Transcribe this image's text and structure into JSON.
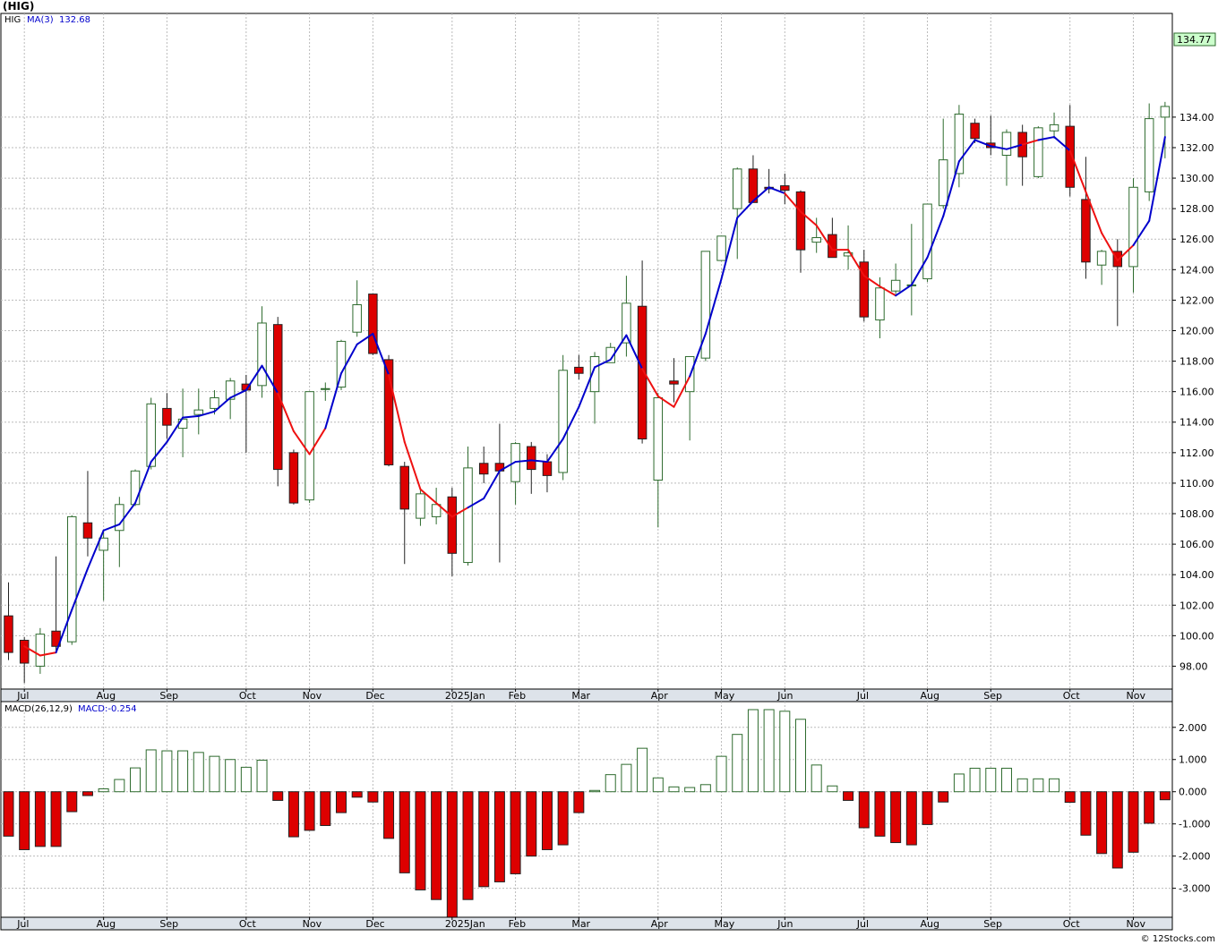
{
  "header": {
    "title": "(HIG)"
  },
  "legend": {
    "symbol": "HIG",
    "ma_label": "MA(3)",
    "ma_value": "132.68"
  },
  "macd_legend": {
    "label": "MACD(26,12,9)",
    "value_label": "MACD:-0.254"
  },
  "last_price": "134.77",
  "credit": "© 12Stocks.com",
  "colors": {
    "up": "#2e6b2e",
    "down": "#dd0000",
    "ma_up": "#0000cc",
    "ma_down": "#ee1111",
    "grid": "#bbbbbb"
  },
  "x_labels": [
    {
      "i": 1,
      "text": "Jul"
    },
    {
      "i": 6,
      "text": "Aug"
    },
    {
      "i": 10,
      "text": "Sep"
    },
    {
      "i": 15,
      "text": "Oct"
    },
    {
      "i": 19,
      "text": "Nov"
    },
    {
      "i": 23,
      "text": "Dec"
    },
    {
      "i": 28,
      "text": "2025Jan"
    },
    {
      "i": 32,
      "text": "Feb"
    },
    {
      "i": 36,
      "text": "Mar"
    },
    {
      "i": 41,
      "text": "Apr"
    },
    {
      "i": 45,
      "text": "May"
    },
    {
      "i": 49,
      "text": "Jun"
    },
    {
      "i": 54,
      "text": "Jul"
    },
    {
      "i": 58,
      "text": "Aug"
    },
    {
      "i": 62,
      "text": "Sep"
    },
    {
      "i": 67,
      "text": "Oct"
    },
    {
      "i": 71,
      "text": "Nov"
    }
  ],
  "chart_data": [
    {
      "type": "candlestick",
      "ylim": [
        96.5,
        140.8
      ],
      "yticks": [
        98,
        100,
        102,
        104,
        106,
        108,
        110,
        112,
        114,
        116,
        118,
        120,
        122,
        124,
        126,
        128,
        130,
        132,
        134
      ],
      "grid": true,
      "ohlc": [
        [
          101.3,
          103.5,
          98.4,
          98.9
        ],
        [
          99.7,
          99.9,
          96.9,
          98.2
        ],
        [
          98.0,
          100.5,
          97.5,
          100.1
        ],
        [
          100.3,
          105.2,
          99.0,
          99.3
        ],
        [
          99.6,
          107.9,
          99.4,
          107.8
        ],
        [
          107.4,
          110.8,
          105.2,
          106.4
        ],
        [
          105.6,
          106.8,
          102.3,
          106.4
        ],
        [
          106.9,
          109.1,
          104.5,
          108.6
        ],
        [
          108.6,
          110.9,
          108.5,
          110.8
        ],
        [
          111.1,
          115.6,
          110.9,
          115.2
        ],
        [
          114.9,
          115.9,
          112.9,
          113.8
        ],
        [
          113.6,
          116.2,
          111.7,
          114.2
        ],
        [
          114.5,
          116.2,
          113.2,
          114.8
        ],
        [
          114.9,
          116.1,
          114.5,
          115.6
        ],
        [
          115.5,
          116.9,
          114.2,
          116.7
        ],
        [
          116.5,
          117.1,
          112.0,
          116.1
        ],
        [
          116.4,
          121.6,
          115.6,
          120.5
        ],
        [
          120.4,
          120.9,
          109.8,
          110.9
        ],
        [
          112.0,
          112.2,
          108.6,
          108.7
        ],
        [
          108.9,
          116.0,
          108.7,
          116.0
        ],
        [
          116.2,
          116.6,
          115.4,
          116.2
        ],
        [
          116.3,
          119.4,
          116.1,
          119.3
        ],
        [
          119.9,
          123.3,
          119.6,
          121.7
        ],
        [
          122.4,
          122.4,
          118.4,
          118.5
        ],
        [
          118.1,
          118.4,
          111.1,
          111.2
        ],
        [
          111.1,
          111.4,
          104.7,
          108.3
        ],
        [
          107.7,
          109.6,
          107.2,
          109.3
        ],
        [
          107.8,
          109.7,
          107.3,
          108.6
        ],
        [
          109.1,
          109.7,
          103.9,
          105.4
        ],
        [
          104.8,
          112.4,
          104.6,
          111.0
        ],
        [
          111.3,
          112.4,
          110.0,
          110.6
        ],
        [
          111.3,
          113.9,
          104.8,
          110.8
        ],
        [
          110.1,
          112.7,
          108.6,
          112.6
        ],
        [
          112.4,
          112.7,
          109.3,
          110.9
        ],
        [
          111.4,
          111.9,
          109.4,
          110.5
        ],
        [
          110.7,
          118.4,
          110.2,
          117.4
        ],
        [
          117.6,
          118.4,
          116.8,
          117.2
        ],
        [
          116.0,
          118.6,
          113.9,
          118.3
        ],
        [
          117.9,
          119.2,
          117.9,
          118.9
        ],
        [
          119.2,
          123.6,
          118.3,
          121.8
        ],
        [
          121.6,
          124.6,
          112.6,
          112.9
        ],
        [
          110.2,
          115.9,
          107.1,
          115.6
        ],
        [
          116.7,
          118.2,
          115.3,
          116.5
        ],
        [
          116.0,
          117.9,
          112.8,
          118.3
        ],
        [
          118.2,
          125.2,
          118.0,
          125.2
        ],
        [
          124.6,
          126.2,
          124.6,
          126.2
        ],
        [
          128.0,
          130.7,
          124.7,
          130.6
        ],
        [
          130.6,
          131.5,
          128.5,
          128.4
        ],
        [
          129.4,
          130.6,
          129.0,
          129.3
        ],
        [
          129.5,
          130.3,
          128.3,
          129.2
        ],
        [
          129.1,
          129.2,
          123.8,
          125.3
        ],
        [
          125.8,
          127.4,
          125.1,
          126.1
        ],
        [
          126.3,
          127.4,
          124.8,
          124.8
        ],
        [
          124.9,
          126.9,
          124.0,
          125.1
        ],
        [
          124.5,
          125.3,
          120.6,
          120.9
        ],
        [
          120.7,
          123.5,
          119.5,
          122.8
        ],
        [
          122.6,
          124.4,
          122.4,
          123.3
        ],
        [
          123.0,
          127.0,
          121.0,
          123.0
        ],
        [
          123.4,
          128.3,
          123.2,
          128.3
        ],
        [
          128.2,
          133.9,
          128.0,
          131.2
        ],
        [
          130.3,
          134.8,
          129.4,
          134.2
        ],
        [
          133.6,
          133.9,
          132.3,
          132.6
        ],
        [
          132.3,
          134.1,
          131.5,
          132.0
        ],
        [
          131.5,
          133.2,
          129.5,
          133.0
        ],
        [
          133.0,
          133.5,
          129.5,
          131.4
        ],
        [
          130.1,
          133.4,
          130.0,
          133.3
        ],
        [
          133.1,
          134.3,
          132.6,
          133.5
        ],
        [
          133.4,
          134.8,
          128.8,
          129.4
        ],
        [
          128.6,
          131.4,
          123.4,
          124.5
        ],
        [
          124.3,
          125.3,
          123.0,
          125.2
        ],
        [
          125.2,
          126.0,
          120.3,
          124.2
        ],
        [
          124.2,
          130.0,
          122.5,
          129.4
        ],
        [
          129.1,
          134.9,
          128.5,
          133.9
        ],
        [
          134.0,
          135.0,
          131.3,
          134.7
        ]
      ],
      "ma3": [
        null,
        99.3,
        98.7,
        98.9,
        101.7,
        104.4,
        106.9,
        107.3,
        108.7,
        111.4,
        112.7,
        114.3,
        114.4,
        114.7,
        115.6,
        116.1,
        117.7,
        115.9,
        113.4,
        111.9,
        113.6,
        117.2,
        119.1,
        119.8,
        117.1,
        112.7,
        109.6,
        108.7,
        107.8,
        108.4,
        109.0,
        110.8,
        111.4,
        111.5,
        111.4,
        112.9,
        115.0,
        117.6,
        118.1,
        119.7,
        117.5,
        115.7,
        115.0,
        117.0,
        119.8,
        123.4,
        127.4,
        128.5,
        129.4,
        129.0,
        127.8,
        126.9,
        125.3,
        125.3,
        123.6,
        122.9,
        122.3,
        123.0,
        124.8,
        127.5,
        131.1,
        132.5,
        132.1,
        131.9,
        132.2,
        132.5,
        132.7,
        131.8,
        129.1,
        126.4,
        124.6,
        125.6,
        127.2,
        132.7
      ],
      "ma_trend": [
        "up",
        "down",
        "down",
        "up",
        "up",
        "up",
        "up",
        "up",
        "up",
        "up",
        "up",
        "up",
        "up",
        "up",
        "up",
        "up",
        "up",
        "down",
        "down",
        "down",
        "up",
        "up",
        "up",
        "up",
        "down",
        "down",
        "down",
        "down",
        "down",
        "up",
        "up",
        "up",
        "up",
        "up",
        "up",
        "up",
        "up",
        "up",
        "up",
        "up",
        "down",
        "down",
        "down",
        "up",
        "up",
        "up",
        "up",
        "up",
        "up",
        "down",
        "down",
        "down",
        "down",
        "down",
        "down",
        "down",
        "up",
        "up",
        "up",
        "up",
        "up",
        "up",
        "up",
        "up",
        "down",
        "up",
        "up",
        "down",
        "down",
        "down",
        "down",
        "up",
        "up",
        "up"
      ]
    },
    {
      "type": "bar",
      "title": "MACD(26,12,9)",
      "ylim": [
        -3.9,
        2.8
      ],
      "yticks": [
        -3.0,
        -2.0,
        -1.0,
        0.0,
        1.0,
        2.0
      ],
      "ytick_labels": [
        "-3.000",
        "-2.000",
        "-1.000",
        "0.000",
        "1.000",
        "2.000"
      ],
      "values": [
        -1.38,
        -1.8,
        -1.7,
        -1.7,
        -0.62,
        -0.12,
        0.09,
        0.38,
        0.74,
        1.3,
        1.27,
        1.27,
        1.22,
        1.1,
        1.0,
        0.76,
        0.98,
        -0.27,
        -1.4,
        -1.2,
        -1.05,
        -0.65,
        -0.17,
        -0.32,
        -1.45,
        -2.52,
        -3.05,
        -3.35,
        -3.9,
        -3.35,
        -2.95,
        -2.8,
        -2.55,
        -2.0,
        -1.8,
        -1.65,
        -0.65,
        0.04,
        0.53,
        0.85,
        1.35,
        0.43,
        0.15,
        0.13,
        0.22,
        1.1,
        1.78,
        2.55,
        2.55,
        2.5,
        2.25,
        0.83,
        0.18,
        -0.27,
        -1.12,
        -1.38,
        -1.58,
        -1.65,
        -1.02,
        -0.32,
        0.55,
        0.73,
        0.73,
        0.73,
        0.4,
        0.4,
        0.4,
        -0.33,
        -1.35,
        -1.92,
        -2.37,
        -1.88,
        -0.98,
        -0.25
      ]
    }
  ]
}
